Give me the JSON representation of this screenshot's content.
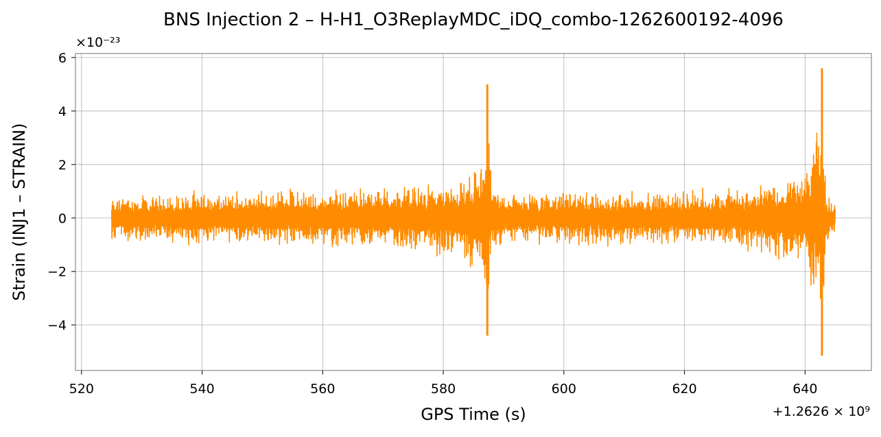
{
  "chart_data": {
    "type": "line",
    "title": "BNS Injection 2 – H-H1_O3ReplayMDC_iDQ_combo-1262600192-4096",
    "xlabel": "GPS Time (s)",
    "ylabel": "Strain (INJ1 – STRAIN)",
    "x_offset_label": "+1.2626 × 10⁹",
    "y_multiplier_label": "×10⁻²³",
    "xlim": [
      519,
      651
    ],
    "ylim": [
      -5.7,
      6.15
    ],
    "x_ticks": [
      520,
      540,
      560,
      580,
      600,
      620,
      640
    ],
    "y_ticks": [
      -4,
      -2,
      0,
      2,
      4,
      6
    ],
    "x_tick_labels": [
      "520",
      "540",
      "560",
      "580",
      "600",
      "620",
      "640"
    ],
    "y_tick_labels": [
      "−4",
      "−2",
      "0",
      "2",
      "4",
      "6"
    ],
    "grid": true,
    "legend": "none",
    "series": [
      {
        "color": "#ff8c00",
        "x_range": [
          525,
          645
        ],
        "envelope_upper": [
          [
            525,
            0.9
          ],
          [
            530,
            0.95
          ],
          [
            535,
            1.0
          ],
          [
            540,
            1.1
          ],
          [
            545,
            1.05
          ],
          [
            550,
            1.1
          ],
          [
            555,
            1.2
          ],
          [
            560,
            1.15
          ],
          [
            565,
            1.2
          ],
          [
            570,
            1.25
          ],
          [
            575,
            1.3
          ],
          [
            580,
            1.4
          ],
          [
            583,
            1.6
          ],
          [
            586,
            2.0
          ],
          [
            587.3,
            5.0
          ],
          [
            588,
            1.2
          ],
          [
            592,
            1.0
          ],
          [
            600,
            1.1
          ],
          [
            610,
            1.1
          ],
          [
            620,
            1.1
          ],
          [
            625,
            1.2
          ],
          [
            630,
            1.3
          ],
          [
            635,
            1.5
          ],
          [
            640,
            1.9
          ],
          [
            642.8,
            5.6
          ],
          [
            643.5,
            1.0
          ],
          [
            645,
            0.6
          ]
        ],
        "envelope_lower": [
          [
            525,
            -0.9
          ],
          [
            530,
            -0.95
          ],
          [
            535,
            -1.0
          ],
          [
            540,
            -1.1
          ],
          [
            545,
            -1.05
          ],
          [
            550,
            -1.1
          ],
          [
            555,
            -1.2
          ],
          [
            560,
            -1.15
          ],
          [
            565,
            -1.2
          ],
          [
            570,
            -1.25
          ],
          [
            575,
            -1.3
          ],
          [
            580,
            -1.5
          ],
          [
            583,
            -1.7
          ],
          [
            586,
            -2.2
          ],
          [
            587.3,
            -4.4
          ],
          [
            588,
            -1.3
          ],
          [
            592,
            -1.0
          ],
          [
            600,
            -1.1
          ],
          [
            610,
            -1.1
          ],
          [
            620,
            -1.1
          ],
          [
            625,
            -1.2
          ],
          [
            630,
            -1.3
          ],
          [
            635,
            -1.6
          ],
          [
            640,
            -2.0
          ],
          [
            642.8,
            -5.15
          ],
          [
            643.5,
            -1.0
          ],
          [
            645,
            -0.6
          ]
        ],
        "peaks": [
          {
            "x": 587.3,
            "max": 5.0,
            "min": -4.4
          },
          {
            "x": 642.8,
            "max": 5.6,
            "min": -5.15
          }
        ]
      }
    ]
  }
}
